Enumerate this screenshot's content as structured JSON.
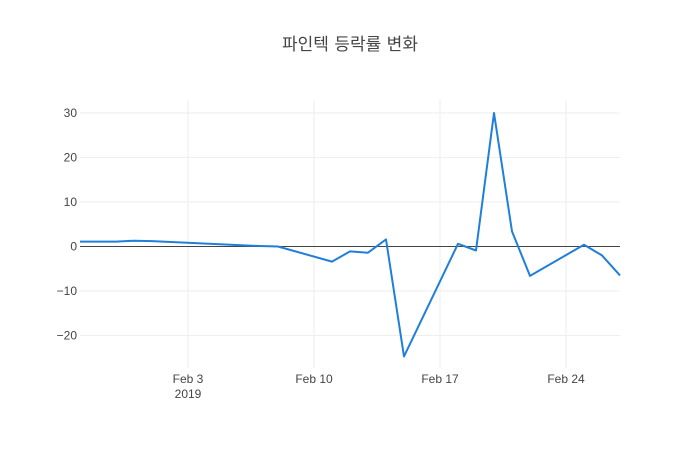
{
  "chart_data": {
    "type": "line",
    "title": "파인텍 등락률 변화",
    "xlabel": "",
    "ylabel": "",
    "x_ticks": [
      {
        "date": "2019-02-03",
        "label": "Feb 3",
        "sublabel": "2019"
      },
      {
        "date": "2019-02-10",
        "label": "Feb 10",
        "sublabel": ""
      },
      {
        "date": "2019-02-17",
        "label": "Feb 17",
        "sublabel": ""
      },
      {
        "date": "2019-02-24",
        "label": "Feb 24",
        "sublabel": ""
      }
    ],
    "y_ticks": [
      30,
      20,
      10,
      0,
      -10,
      -20
    ],
    "y_tick_labels": [
      "30",
      "20",
      "10",
      "0",
      "−10",
      "−20"
    ],
    "xlim": [
      "2019-01-28",
      "2019-02-27"
    ],
    "ylim": [
      -25,
      30
    ],
    "grid": true,
    "zero_line": true,
    "line_color": "#1f7fd9",
    "series": [
      {
        "x": [
          "2019-01-28",
          "2019-01-29",
          "2019-01-30",
          "2019-01-31",
          "2019-02-01",
          "2019-02-07",
          "2019-02-08",
          "2019-02-11",
          "2019-02-12",
          "2019-02-13",
          "2019-02-14",
          "2019-02-15",
          "2019-02-18",
          "2019-02-19",
          "2019-02-20",
          "2019-02-21",
          "2019-02-22",
          "2019-02-25",
          "2019-02-26",
          "2019-02-27"
        ],
        "y": [
          1.1,
          1.1,
          1.1,
          1.3,
          1.2,
          0.1,
          0.0,
          -3.4,
          -1.1,
          -1.4,
          1.6,
          -24.7,
          0.6,
          -0.9,
          30.0,
          3.4,
          -6.6,
          0.4,
          -2.0,
          -6.5
        ]
      }
    ]
  }
}
